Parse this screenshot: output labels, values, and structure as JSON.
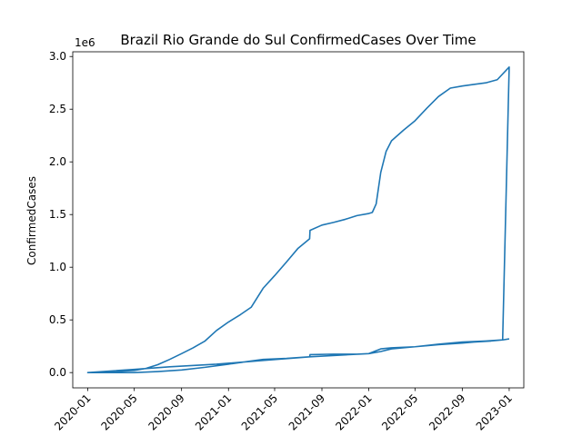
{
  "chart_data": {
    "type": "line",
    "title": "Brazil Rio Grande do Sul ConfirmedCases Over Time",
    "xlabel": "",
    "ylabel": "ConfirmedCases",
    "y_scale_label": "1e6",
    "xlim": [
      "2019-11-23",
      "2023-02-08"
    ],
    "ylim": [
      -145000,
      3045000
    ],
    "x_ticks": [
      "2020-01",
      "2020-05",
      "2020-09",
      "2021-01",
      "2021-05",
      "2021-09",
      "2022-01",
      "2022-05",
      "2022-09",
      "2023-01"
    ],
    "y_ticks": [
      0.0,
      0.5,
      1.0,
      1.5,
      2.0,
      2.5,
      3.0
    ],
    "y_tick_labels": [
      "0.0",
      "0.5",
      "1.0",
      "1.5",
      "2.0",
      "2.5",
      "3.0"
    ],
    "line_color": "#1f77b4",
    "grid": false,
    "series": [
      {
        "x": [
          "2020-01-01",
          "2020-03-01",
          "2020-05-01",
          "2020-06-01",
          "2020-07-01",
          "2020-08-01",
          "2020-09-01",
          "2020-10-01",
          "2020-11-01",
          "2020-12-01",
          "2021-01-01",
          "2021-02-01",
          "2021-03-01",
          "2021-04-01",
          "2021-05-01",
          "2021-06-01",
          "2021-07-01",
          "2021-07-31",
          "2021-08-01",
          "2021-09-01",
          "2021-10-01",
          "2021-11-01",
          "2021-12-01",
          "2022-01-01",
          "2022-01-10",
          "2022-01-20",
          "2022-02-01",
          "2022-02-15",
          "2022-03-01",
          "2022-04-01",
          "2022-05-01",
          "2022-06-01",
          "2022-07-01",
          "2022-08-01",
          "2022-09-01",
          "2022-10-01",
          "2022-11-01",
          "2022-12-01",
          "2023-01-01",
          "2022-12-15",
          "2022-11-15",
          "2022-10-01",
          "2022-09-01",
          "2022-07-01",
          "2022-05-01",
          "2022-03-01",
          "2022-02-01",
          "2022-01-01",
          "2021-08-01",
          "2021-04-01",
          "2020-12-01",
          "2020-08-01",
          "2020-05-01",
          "2020-01-01",
          "2020-03-01",
          "2020-05-01",
          "2020-07-01",
          "2020-09-01",
          "2020-11-01",
          "2021-01-01",
          "2021-03-01",
          "2021-04-01",
          "2021-06-01",
          "2021-07-31",
          "2021-08-01",
          "2021-10-01",
          "2021-12-01",
          "2022-01-01",
          "2022-02-01",
          "2022-03-01",
          "2022-05-01",
          "2022-07-01",
          "2022-09-01",
          "2022-11-01",
          "2022-12-15",
          "2023-01-01"
        ],
        "y": [
          0,
          8000,
          20000,
          40000,
          75000,
          125000,
          180000,
          235000,
          300000,
          400000,
          480000,
          550000,
          620000,
          800000,
          920000,
          1050000,
          1180000,
          1270000,
          1350000,
          1400000,
          1425000,
          1455000,
          1490000,
          1510000,
          1520000,
          1600000,
          1900000,
          2100000,
          2200000,
          2300000,
          2390000,
          2510000,
          2620000,
          2700000,
          2720000,
          2735000,
          2750000,
          2780000,
          2900000,
          310000,
          300000,
          290000,
          280000,
          265000,
          245000,
          225000,
          200000,
          180000,
          150000,
          115000,
          80000,
          55000,
          30000,
          0,
          0,
          0,
          10000,
          25000,
          50000,
          80000,
          110000,
          125000,
          135000,
          150000,
          170000,
          175000,
          175000,
          180000,
          225000,
          235000,
          245000,
          270000,
          290000,
          300000,
          310000,
          320000
        ]
      }
    ]
  }
}
